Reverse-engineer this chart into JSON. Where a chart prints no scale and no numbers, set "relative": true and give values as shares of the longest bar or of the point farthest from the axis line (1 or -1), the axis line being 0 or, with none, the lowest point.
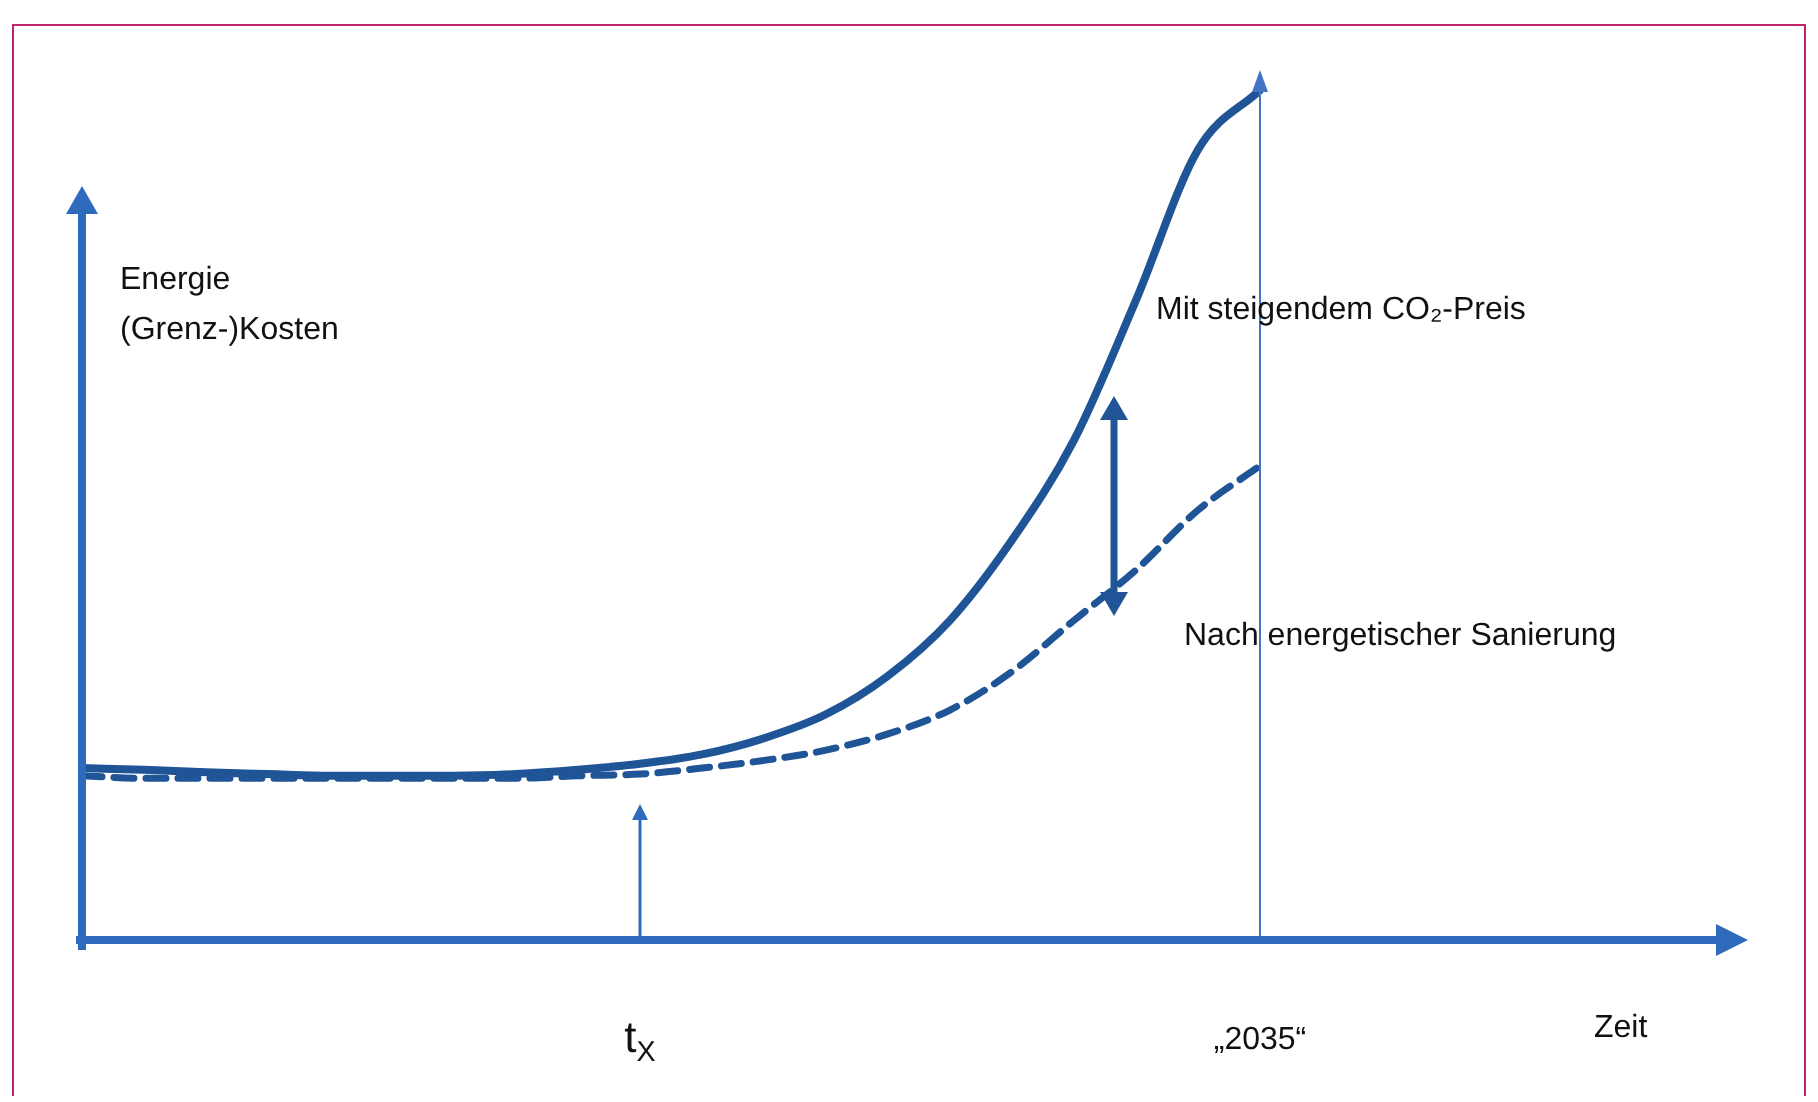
{
  "chart_data": {
    "type": "line",
    "relative": true,
    "xlabel": "Zeit",
    "ylabel": "Energie\n(Grenz-)Kosten",
    "categories": [
      null,
      null,
      null,
      null,
      null,
      null,
      null,
      null,
      null,
      "t$_{X}$",
      null,
      null,
      null,
      null,
      null,
      null,
      null,
      null,
      null,
      "„2035“",
      null,
      null,
      null,
      null,
      null,
      null,
      null
    ],
    "series": [
      {
        "name": "Mit steigendem CO₂-Preis",
        "color": "#1f5597",
        "line_style": "solid",
        "values": [
          0.206,
          0.204,
          0.201,
          0.199,
          0.197,
          0.197,
          0.197,
          0.199,
          0.204,
          0.211,
          0.222,
          0.241,
          0.269,
          0.314,
          0.379,
          0.473,
          0.59,
          0.754,
          0.93,
          1,
          null,
          null,
          null,
          null,
          null,
          null,
          null
        ]
      },
      {
        "name": "Nach energetischer Sanierung",
        "color": "#1f5597",
        "line_style": "dashed",
        "values": [
          0.197,
          0.194,
          0.194,
          0.194,
          0.194,
          0.194,
          0.194,
          0.194,
          0.197,
          0.199,
          0.206,
          0.215,
          0.227,
          0.246,
          0.274,
          0.319,
          0.379,
          0.438,
          0.508,
          0.56,
          null,
          null,
          null,
          null,
          null,
          null,
          null
        ]
      }
    ],
    "ref_lines": [
      {
        "axis": "x",
        "value": "„2035“",
        "color": "#4472c4"
      }
    ],
    "legend": false,
    "marker": "none"
  }
}
